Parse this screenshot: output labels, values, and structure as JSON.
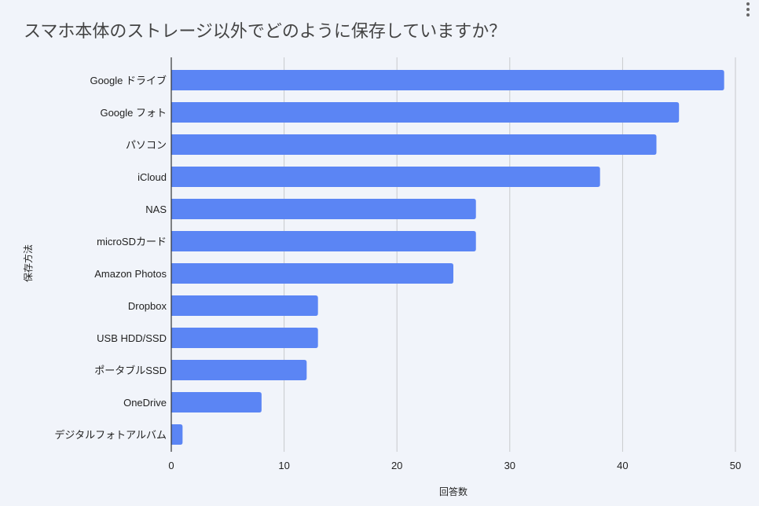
{
  "chart_data": {
    "type": "bar",
    "orientation": "horizontal",
    "title": "スマホ本体のストレージ以外でどのように保存していますか？",
    "xlabel": "回答数",
    "ylabel": "保存方法",
    "categories": [
      "Google ドライブ",
      "Google フォト",
      "パソコン",
      "iCloud",
      "NAS",
      "microSDカード",
      "Amazon Photos",
      "Dropbox",
      "USB HDD/SSD",
      "ポータブルSSD",
      "OneDrive",
      "デジタルフォトアルバム"
    ],
    "values": [
      49,
      45,
      43,
      38,
      27,
      27,
      25,
      13,
      13,
      12,
      8,
      1
    ],
    "xlim": [
      0,
      50
    ],
    "xticks": [
      0,
      10,
      20,
      30,
      40,
      50
    ],
    "grid": true,
    "bar_color": "#5b85f4",
    "grid_color": "#c8c9cc",
    "axis_color": "#333333"
  },
  "menu": {
    "icon": "more-vert-icon"
  }
}
